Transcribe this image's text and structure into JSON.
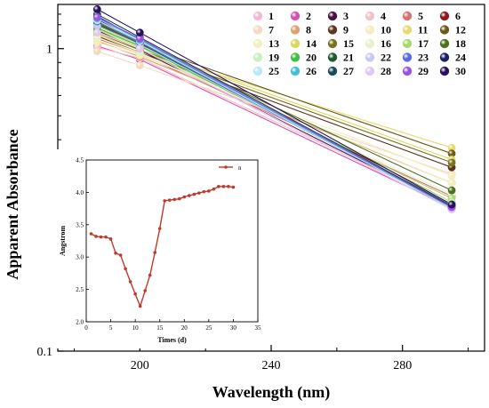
{
  "chart_data": [
    {
      "type": "line",
      "xlabel": "Wavelength (nm)",
      "ylabel": "Apparent Absorbance",
      "x_ticks": [
        "200",
        "240",
        "280"
      ],
      "y_ticks": [
        "0.1",
        "1"
      ],
      "y_scale": "log",
      "xlim": [
        175,
        305
      ],
      "ylim": [
        0.1,
        1.4
      ],
      "legend_placement": "top-right",
      "series": [
        {
          "name": "1",
          "color": "#f2b8d8",
          "points": [
            [
              187,
              1.12
            ],
            [
              200,
              0.99
            ],
            [
              295,
              0.295
            ]
          ]
        },
        {
          "name": "2",
          "color": "#d94fb0",
          "points": [
            [
              187,
              1.02
            ],
            [
              200,
              0.92
            ],
            [
              295,
              0.298
            ]
          ]
        },
        {
          "name": "3",
          "color": "#4a1040",
          "points": [
            [
              187,
              1.15
            ],
            [
              200,
              0.99
            ],
            [
              295,
              0.301
            ]
          ]
        },
        {
          "name": "4",
          "color": "#f2c2c2",
          "points": [
            [
              187,
              1.01
            ],
            [
              200,
              0.93
            ],
            [
              295,
              0.305
            ]
          ]
        },
        {
          "name": "5",
          "color": "#d87070",
          "points": [
            [
              187,
              1.08
            ],
            [
              200,
              0.96
            ],
            [
              295,
              0.325
            ]
          ]
        },
        {
          "name": "6",
          "color": "#8b1a1a",
          "points": [
            [
              187,
              1.25
            ],
            [
              200,
              1.05
            ],
            [
              295,
              0.31
            ]
          ]
        },
        {
          "name": "7",
          "color": "#f3d9c0",
          "points": [
            [
              187,
              0.98
            ],
            [
              200,
              0.88
            ],
            [
              295,
              0.385
            ]
          ]
        },
        {
          "name": "8",
          "color": "#e0a070",
          "points": [
            [
              187,
              1.06
            ],
            [
              200,
              0.94
            ],
            [
              295,
              0.36
            ]
          ]
        },
        {
          "name": "9",
          "color": "#5a3520",
          "points": [
            [
              187,
              1.1
            ],
            [
              200,
              0.97
            ],
            [
              295,
              0.405
            ]
          ]
        },
        {
          "name": "10",
          "color": "#f5ecc0",
          "points": [
            [
              187,
              1.05
            ],
            [
              200,
              0.95
            ],
            [
              295,
              0.38
            ]
          ]
        },
        {
          "name": "11",
          "color": "#e8d870",
          "points": [
            [
              187,
              1.11
            ],
            [
              200,
              0.99
            ],
            [
              295,
              0.47
            ]
          ]
        },
        {
          "name": "12",
          "color": "#6b5a1a",
          "points": [
            [
              187,
              1.2
            ],
            [
              200,
              1.03
            ],
            [
              295,
              0.45
            ]
          ]
        },
        {
          "name": "13",
          "color": "#f0f0c0",
          "points": [
            [
              187,
              1.07
            ],
            [
              200,
              0.96
            ],
            [
              295,
              0.36
            ]
          ]
        },
        {
          "name": "14",
          "color": "#d8d860",
          "points": [
            [
              187,
              1.16
            ],
            [
              200,
              1.01
            ],
            [
              295,
              0.43
            ]
          ]
        },
        {
          "name": "15",
          "color": "#7a7020",
          "points": [
            [
              187,
              1.13
            ],
            [
              200,
              0.99
            ],
            [
              295,
              0.42
            ]
          ]
        },
        {
          "name": "16",
          "color": "#e8f0c8",
          "points": [
            [
              187,
              1.09
            ],
            [
              200,
              0.97
            ],
            [
              295,
              0.33
            ]
          ]
        },
        {
          "name": "17",
          "color": "#a8d870",
          "points": [
            [
              187,
              1.14
            ],
            [
              200,
              1.0
            ],
            [
              295,
              0.32
            ]
          ]
        },
        {
          "name": "18",
          "color": "#4a7020",
          "points": [
            [
              187,
              1.22
            ],
            [
              200,
              1.04
            ],
            [
              295,
              0.34
            ]
          ]
        },
        {
          "name": "19",
          "color": "#c8f0b8",
          "points": [
            [
              187,
              1.18
            ],
            [
              200,
              1.02
            ],
            [
              295,
              0.31
            ]
          ]
        },
        {
          "name": "20",
          "color": "#40c040",
          "points": [
            [
              187,
              1.17
            ],
            [
              200,
              1.02
            ],
            [
              295,
              0.306
            ]
          ]
        },
        {
          "name": "21",
          "color": "#1f5a2a",
          "points": [
            [
              187,
              1.21
            ],
            [
              200,
              1.04
            ],
            [
              295,
              0.3
            ]
          ]
        },
        {
          "name": "22",
          "color": "#c8c8f0",
          "points": [
            [
              187,
              1.19
            ],
            [
              200,
              1.03
            ],
            [
              295,
              0.302
            ]
          ]
        },
        {
          "name": "23",
          "color": "#5a6ae0",
          "points": [
            [
              187,
              1.23
            ],
            [
              200,
              1.05
            ],
            [
              295,
              0.297
            ]
          ]
        },
        {
          "name": "24",
          "color": "#1a1f6a",
          "points": [
            [
              187,
              1.28
            ],
            [
              200,
              1.07
            ],
            [
              295,
              0.3
            ]
          ]
        },
        {
          "name": "25",
          "color": "#b8e8f5",
          "points": [
            [
              187,
              1.24
            ],
            [
              200,
              1.06
            ],
            [
              295,
              0.296
            ]
          ]
        },
        {
          "name": "26",
          "color": "#40c0d8",
          "points": [
            [
              187,
              1.26
            ],
            [
              200,
              1.07
            ],
            [
              295,
              0.298
            ]
          ]
        },
        {
          "name": "27",
          "color": "#1a4a5a",
          "points": [
            [
              187,
              1.3
            ],
            [
              200,
              1.09
            ],
            [
              295,
              0.302
            ]
          ]
        },
        {
          "name": "28",
          "color": "#e0c8f0",
          "points": [
            [
              187,
              1.13
            ],
            [
              200,
              1.0
            ],
            [
              295,
              0.294
            ]
          ]
        },
        {
          "name": "29",
          "color": "#a050e0",
          "points": [
            [
              187,
              1.27
            ],
            [
              200,
              1.08
            ],
            [
              295,
              0.299
            ]
          ]
        },
        {
          "name": "30",
          "color": "#2a1060",
          "points": [
            [
              187,
              1.35
            ],
            [
              200,
              1.13
            ],
            [
              295,
              0.305
            ]
          ]
        }
      ]
    },
    {
      "type": "line",
      "xlabel": "Times (d)",
      "ylabel": "Angstrom",
      "x_ticks": [
        "0",
        "5",
        "10",
        "15",
        "20",
        "25",
        "30",
        "35"
      ],
      "y_ticks": [
        "2.0",
        "2.5",
        "3.0",
        "3.5",
        "4.0",
        "4.5"
      ],
      "xlim": [
        0,
        35
      ],
      "ylim": [
        2.0,
        4.5
      ],
      "legend_placement": "top-right",
      "series": [
        {
          "name": "n",
          "color": "#c0392b",
          "x": [
            1,
            2,
            3,
            4,
            5,
            6,
            7,
            8,
            9,
            10,
            11,
            12,
            13,
            14,
            15,
            16,
            17,
            18,
            19,
            20,
            21,
            22,
            23,
            24,
            25,
            26,
            27,
            28,
            29,
            30
          ],
          "values": [
            3.36,
            3.32,
            3.31,
            3.31,
            3.28,
            3.06,
            3.03,
            2.82,
            2.62,
            2.43,
            2.24,
            2.48,
            2.72,
            3.07,
            3.44,
            3.87,
            3.88,
            3.89,
            3.9,
            3.93,
            3.95,
            3.97,
            3.99,
            4.01,
            4.02,
            4.05,
            4.09,
            4.09,
            4.09,
            4.08
          ]
        }
      ]
    }
  ]
}
